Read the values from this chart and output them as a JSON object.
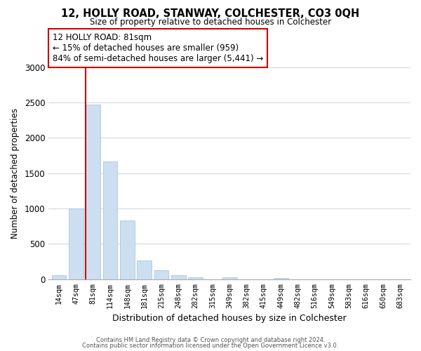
{
  "title": "12, HOLLY ROAD, STANWAY, COLCHESTER, CO3 0QH",
  "subtitle": "Size of property relative to detached houses in Colchester",
  "xlabel": "Distribution of detached houses by size in Colchester",
  "ylabel": "Number of detached properties",
  "bar_labels": [
    "14sqm",
    "47sqm",
    "81sqm",
    "114sqm",
    "148sqm",
    "181sqm",
    "215sqm",
    "248sqm",
    "282sqm",
    "315sqm",
    "349sqm",
    "382sqm",
    "415sqm",
    "449sqm",
    "482sqm",
    "516sqm",
    "549sqm",
    "583sqm",
    "616sqm",
    "650sqm",
    "683sqm"
  ],
  "bar_values": [
    55,
    1000,
    2470,
    1670,
    830,
    270,
    130,
    55,
    30,
    0,
    30,
    0,
    0,
    15,
    0,
    0,
    0,
    0,
    0,
    0,
    0
  ],
  "highlight_index": 2,
  "normal_color": "#ccdff0",
  "red_line_index": 2,
  "annotation_title": "12 HOLLY ROAD: 81sqm",
  "annotation_line1": "← 15% of detached houses are smaller (959)",
  "annotation_line2": "84% of semi-detached houses are larger (5,441) →",
  "ylim": [
    0,
    3000
  ],
  "yticks": [
    0,
    500,
    1000,
    1500,
    2000,
    2500,
    3000
  ],
  "footer1": "Contains HM Land Registry data © Crown copyright and database right 2024.",
  "footer2": "Contains public sector information licensed under the Open Government Licence v3.0.",
  "bg_color": "#ffffff",
  "grid_color": "#d0d8e8",
  "annotation_box_edge": "#cc0000",
  "red_line_color": "#cc0000",
  "bar_edge_color": "#a0bcd8"
}
